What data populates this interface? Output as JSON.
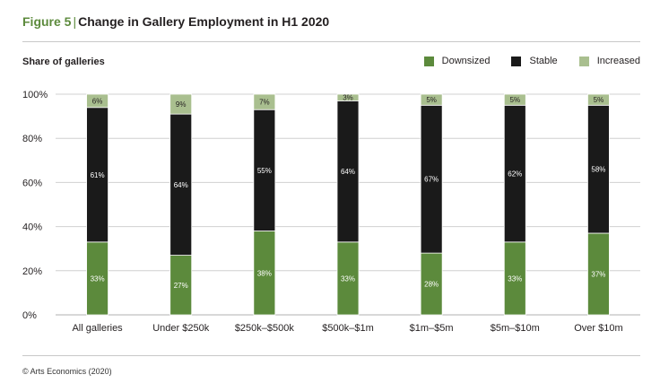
{
  "title": {
    "figure": "Figure 5",
    "separator": "|",
    "text": "Change in Gallery Employment in H1 2020"
  },
  "source": "© Arts Economics (2020)",
  "colors": {
    "downsized": "#5c8a3c",
    "stable": "#1a1a1a",
    "increased": "#a9bf8f",
    "grid": "#d0d0d0",
    "text": "#231f20"
  },
  "chart_data": {
    "type": "bar",
    "stacked": true,
    "ylabel": "Share of galleries",
    "ylim": [
      0,
      100
    ],
    "yticks": [
      "0%",
      "20%",
      "40%",
      "60%",
      "80%",
      "100%"
    ],
    "grid": true,
    "legend_position": "top-right",
    "categories": [
      "All galleries",
      "Under $250k",
      "$250k–$500k",
      "$500k–$1m",
      "$1m–$5m",
      "$5m–$10m",
      "Over $10m"
    ],
    "series": [
      {
        "name": "Downsized",
        "values": [
          33,
          27,
          38,
          33,
          28,
          33,
          37
        ],
        "labels": [
          "33%",
          "27%",
          "38%",
          "33%",
          "28%",
          "33%",
          "37%"
        ]
      },
      {
        "name": "Stable",
        "values": [
          61,
          64,
          55,
          64,
          67,
          62,
          58
        ],
        "labels": [
          "61%",
          "64%",
          "55%",
          "64%",
          "67%",
          "62%",
          "58%"
        ]
      },
      {
        "name": "Increased",
        "values": [
          6,
          9,
          7,
          3,
          5,
          5,
          5
        ],
        "labels": [
          "6%",
          "9%",
          "7%",
          "3%",
          "5%",
          "5%",
          "5%"
        ]
      }
    ]
  }
}
